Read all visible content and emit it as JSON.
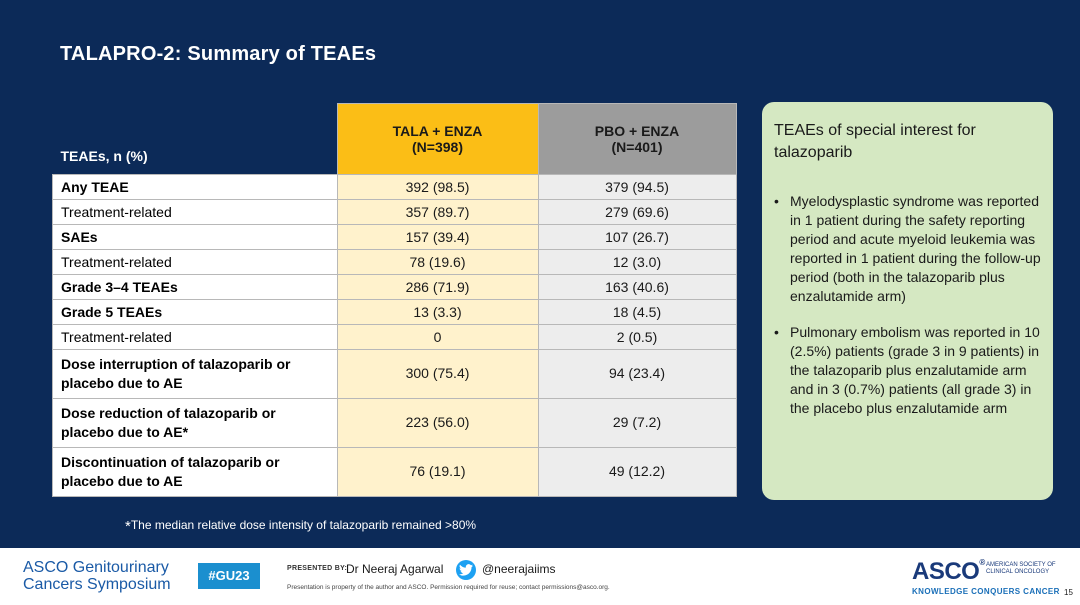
{
  "slide": {
    "title": "TALAPRO-2: Summary of TEAEs",
    "page_number": "15"
  },
  "table": {
    "header_label": "TEAEs, n (%)",
    "col1_name": "TALA + ENZA",
    "col1_n": "(N=398)",
    "col2_name": "PBO + ENZA",
    "col2_n": "(N=401)",
    "rows": [
      {
        "label": "Any TEAE",
        "v1": "392 (98.5)",
        "v2": "379 (94.5)"
      },
      {
        "label": "Treatment-related",
        "v1": "357 (89.7)",
        "v2": "279 (69.6)"
      },
      {
        "label": "SAEs",
        "v1": "157 (39.4)",
        "v2": "107 (26.7)"
      },
      {
        "label": "Treatment-related",
        "v1": "78 (19.6)",
        "v2": "12 (3.0)"
      },
      {
        "label": "Grade 3–4 TEAEs",
        "v1": "286 (71.9)",
        "v2": "163 (40.6)"
      },
      {
        "label": "Grade 5 TEAEs",
        "v1": "13 (3.3)",
        "v2": "18 (4.5)"
      },
      {
        "label": "Treatment-related",
        "v1": "0",
        "v2": "2 (0.5)"
      },
      {
        "label_l1": "Dose interruption of talazoparib or",
        "label_l2": "placebo due to AE",
        "v1": "300 (75.4)",
        "v2": "94 (23.4)"
      },
      {
        "label_l1": "Dose reduction of talazoparib or",
        "label_l2": "placebo due to AE*",
        "v1": "223 (56.0)",
        "v2": "29 (7.2)"
      },
      {
        "label_l1": "Discontinuation of talazoparib or",
        "label_l2": "placebo due to AE",
        "v1": "76 (19.1)",
        "v2": "49 (12.2)"
      }
    ]
  },
  "footnote": {
    "marker": "*",
    "text": "The median relative dose intensity of talazoparib remained >80%"
  },
  "panel": {
    "title": "TEAEs of special interest for talazoparib",
    "bullets": [
      "Myelodysplastic syndrome was reported in 1 patient during the safety reporting period and acute myeloid leukemia was reported in 1 patient during the follow-up period (both in the talazoparib plus enzalutamide arm)",
      "Pulmonary embolism was reported in 10 (2.5%) patients (grade 3 in 9 patients) in the talazoparib plus enzalutamide arm and in 3 (0.7%) patients (all grade 3) in the placebo plus enzalutamide arm"
    ]
  },
  "footer": {
    "brand_line1": "ASCO Genitourinary",
    "brand_line2": "Cancers Symposium",
    "hashtag": "#GU23",
    "presented_by": "PRESENTED BY:",
    "presenter": "Dr Neeraj Agarwal",
    "twitter_handle": "@neerajaiims",
    "disclaimer": "Presentation is property of the author and ASCO. Permission required for reuse; contact permissions@asco.org.",
    "asco_logo": "ASCO",
    "asco_tagline": "AMERICAN SOCIETY OF CLINICAL ONCOLOGY",
    "asco_slogan": "KNOWLEDGE CONQUERS CANCER"
  },
  "colors": {
    "background": "#0c2a58",
    "tala_header": "#fbbe16",
    "pbo_header": "#9c9c9c",
    "panel": "#d5e8c2"
  }
}
